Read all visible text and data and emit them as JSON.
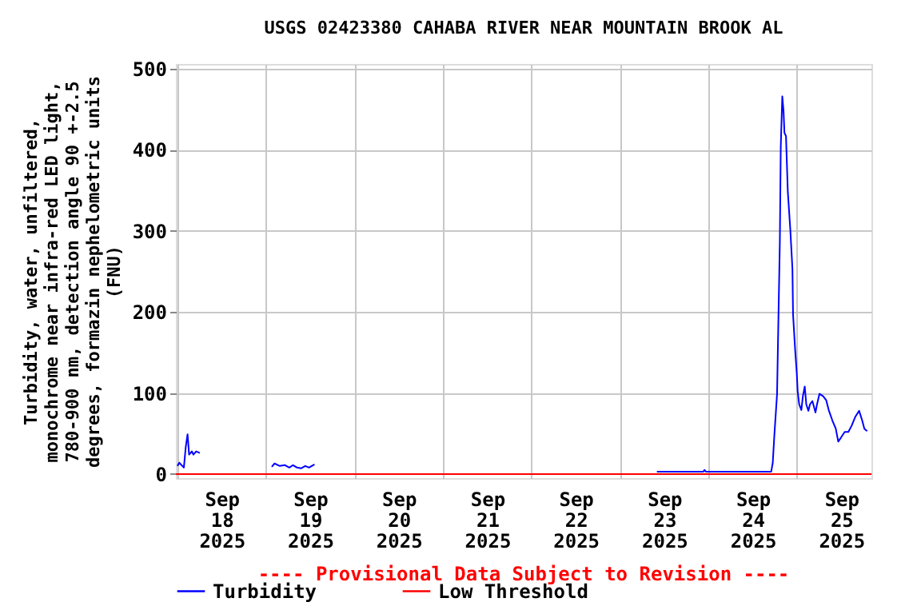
{
  "chart_data": {
    "type": "line",
    "title": "USGS 02423380 CAHABA RIVER NEAR MOUNTAIN BROOK AL",
    "ylabel": "Turbidity, water, unfiltered,\nmonochrome near infra-red LED light,\n780-900 nm, detection angle 90 +-2.5\ndegrees, formazin nephelometric units\n(FNU)",
    "annotations": [
      "---- Provisional Data Subject to Revision ----"
    ],
    "legend": "bottom",
    "grid": true,
    "xlim": [
      "2025-09-17T23:35",
      "2025-09-25T20:10"
    ],
    "ylim": [
      -5,
      506
    ],
    "yticks": [
      0,
      100,
      200,
      300,
      400,
      500
    ],
    "xticks": [
      {
        "value": "2025-09-18T00:00",
        "label": null
      },
      {
        "value": "2025-09-18T12:00",
        "label": "Sep\n18\n2025"
      },
      {
        "value": "2025-09-19T00:00",
        "label": null
      },
      {
        "value": "2025-09-19T12:00",
        "label": "Sep\n19\n2025"
      },
      {
        "value": "2025-09-20T00:00",
        "label": null
      },
      {
        "value": "2025-09-20T12:00",
        "label": "Sep\n20\n2025"
      },
      {
        "value": "2025-09-21T00:00",
        "label": null
      },
      {
        "value": "2025-09-21T12:00",
        "label": "Sep\n21\n2025"
      },
      {
        "value": "2025-09-22T00:00",
        "label": null
      },
      {
        "value": "2025-09-22T12:00",
        "label": "Sep\n22\n2025"
      },
      {
        "value": "2025-09-23T00:00",
        "label": null
      },
      {
        "value": "2025-09-23T12:00",
        "label": "Sep\n23\n2025"
      },
      {
        "value": "2025-09-24T00:00",
        "label": null
      },
      {
        "value": "2025-09-24T12:00",
        "label": "Sep\n24\n2025"
      },
      {
        "value": "2025-09-25T00:00",
        "label": null
      },
      {
        "value": "2025-09-25T12:00",
        "label": "Sep\n25\n2025"
      }
    ],
    "series": [
      {
        "name": "Turbidity",
        "color": "#0000ff",
        "x": [
          "2025-09-18T00:00",
          "2025-09-18T00:30",
          "2025-09-18T01:45",
          "2025-09-18T02:15",
          "2025-09-18T02:45",
          "2025-09-18T03:10",
          "2025-09-18T03:55",
          "2025-09-18T04:20",
          "2025-09-18T05:05",
          "2025-09-18T06:05",
          "2025-09-18T15:00",
          "2025-09-19T01:35",
          "2025-09-19T02:20",
          "2025-09-19T03:45",
          "2025-09-19T05:10",
          "2025-09-19T06:20",
          "2025-09-19T07:20",
          "2025-09-19T08:25",
          "2025-09-19T09:30",
          "2025-09-19T10:40",
          "2025-09-19T11:40",
          "2025-09-19T13:10",
          "2025-09-21T12:00",
          "2025-09-23T10:00",
          "2025-09-23T22:35",
          "2025-09-23T22:55",
          "2025-09-23T23:15",
          "2025-09-24T17:00",
          "2025-09-24T17:25",
          "2025-09-24T17:50",
          "2025-09-24T18:35",
          "2025-09-24T18:55",
          "2025-09-24T19:20",
          "2025-09-24T19:35",
          "2025-09-24T20:00",
          "2025-09-24T20:20",
          "2025-09-24T20:35",
          "2025-09-24T21:00",
          "2025-09-24T21:30",
          "2025-09-24T22:10",
          "2025-09-24T22:45",
          "2025-09-24T22:55",
          "2025-09-24T23:30",
          "2025-09-24T23:55",
          "2025-09-25T00:10",
          "2025-09-25T00:35",
          "2025-09-25T01:10",
          "2025-09-25T01:35",
          "2025-09-25T02:05",
          "2025-09-25T02:30",
          "2025-09-25T03:05",
          "2025-09-25T03:30",
          "2025-09-25T04:10",
          "2025-09-25T05:00",
          "2025-09-25T05:25",
          "2025-09-25T06:05",
          "2025-09-25T07:05",
          "2025-09-25T07:55",
          "2025-09-25T08:35",
          "2025-09-25T09:35",
          "2025-09-25T10:30",
          "2025-09-25T11:10",
          "2025-09-25T11:55",
          "2025-09-25T12:55",
          "2025-09-25T13:55",
          "2025-09-25T14:50",
          "2025-09-25T15:50",
          "2025-09-25T16:50",
          "2025-09-25T17:40",
          "2025-09-25T18:15",
          "2025-09-25T19:00"
        ],
        "values": [
          10,
          14,
          8,
          33,
          49,
          24,
          28,
          24,
          28,
          26,
          null,
          9,
          13,
          10,
          11,
          8,
          11,
          8,
          7,
          10,
          8,
          12,
          null,
          3,
          3,
          5,
          3,
          3,
          14,
          47,
          99,
          184,
          286,
          404,
          466,
          448,
          421,
          417,
          348,
          302,
          253,
          197,
          152,
          125,
          102,
          86,
          79,
          96,
          108,
          86,
          78,
          86,
          90,
          76,
          86,
          99,
          96,
          91,
          79,
          66,
          56,
          40,
          45,
          52,
          52,
          60,
          71,
          78,
          66,
          56,
          53
        ]
      },
      {
        "name": "Low Threshold",
        "color": "#ff0000",
        "x": [
          "2025-09-17T23:35",
          "2025-09-25T20:10"
        ],
        "values": [
          0,
          0
        ]
      }
    ]
  }
}
